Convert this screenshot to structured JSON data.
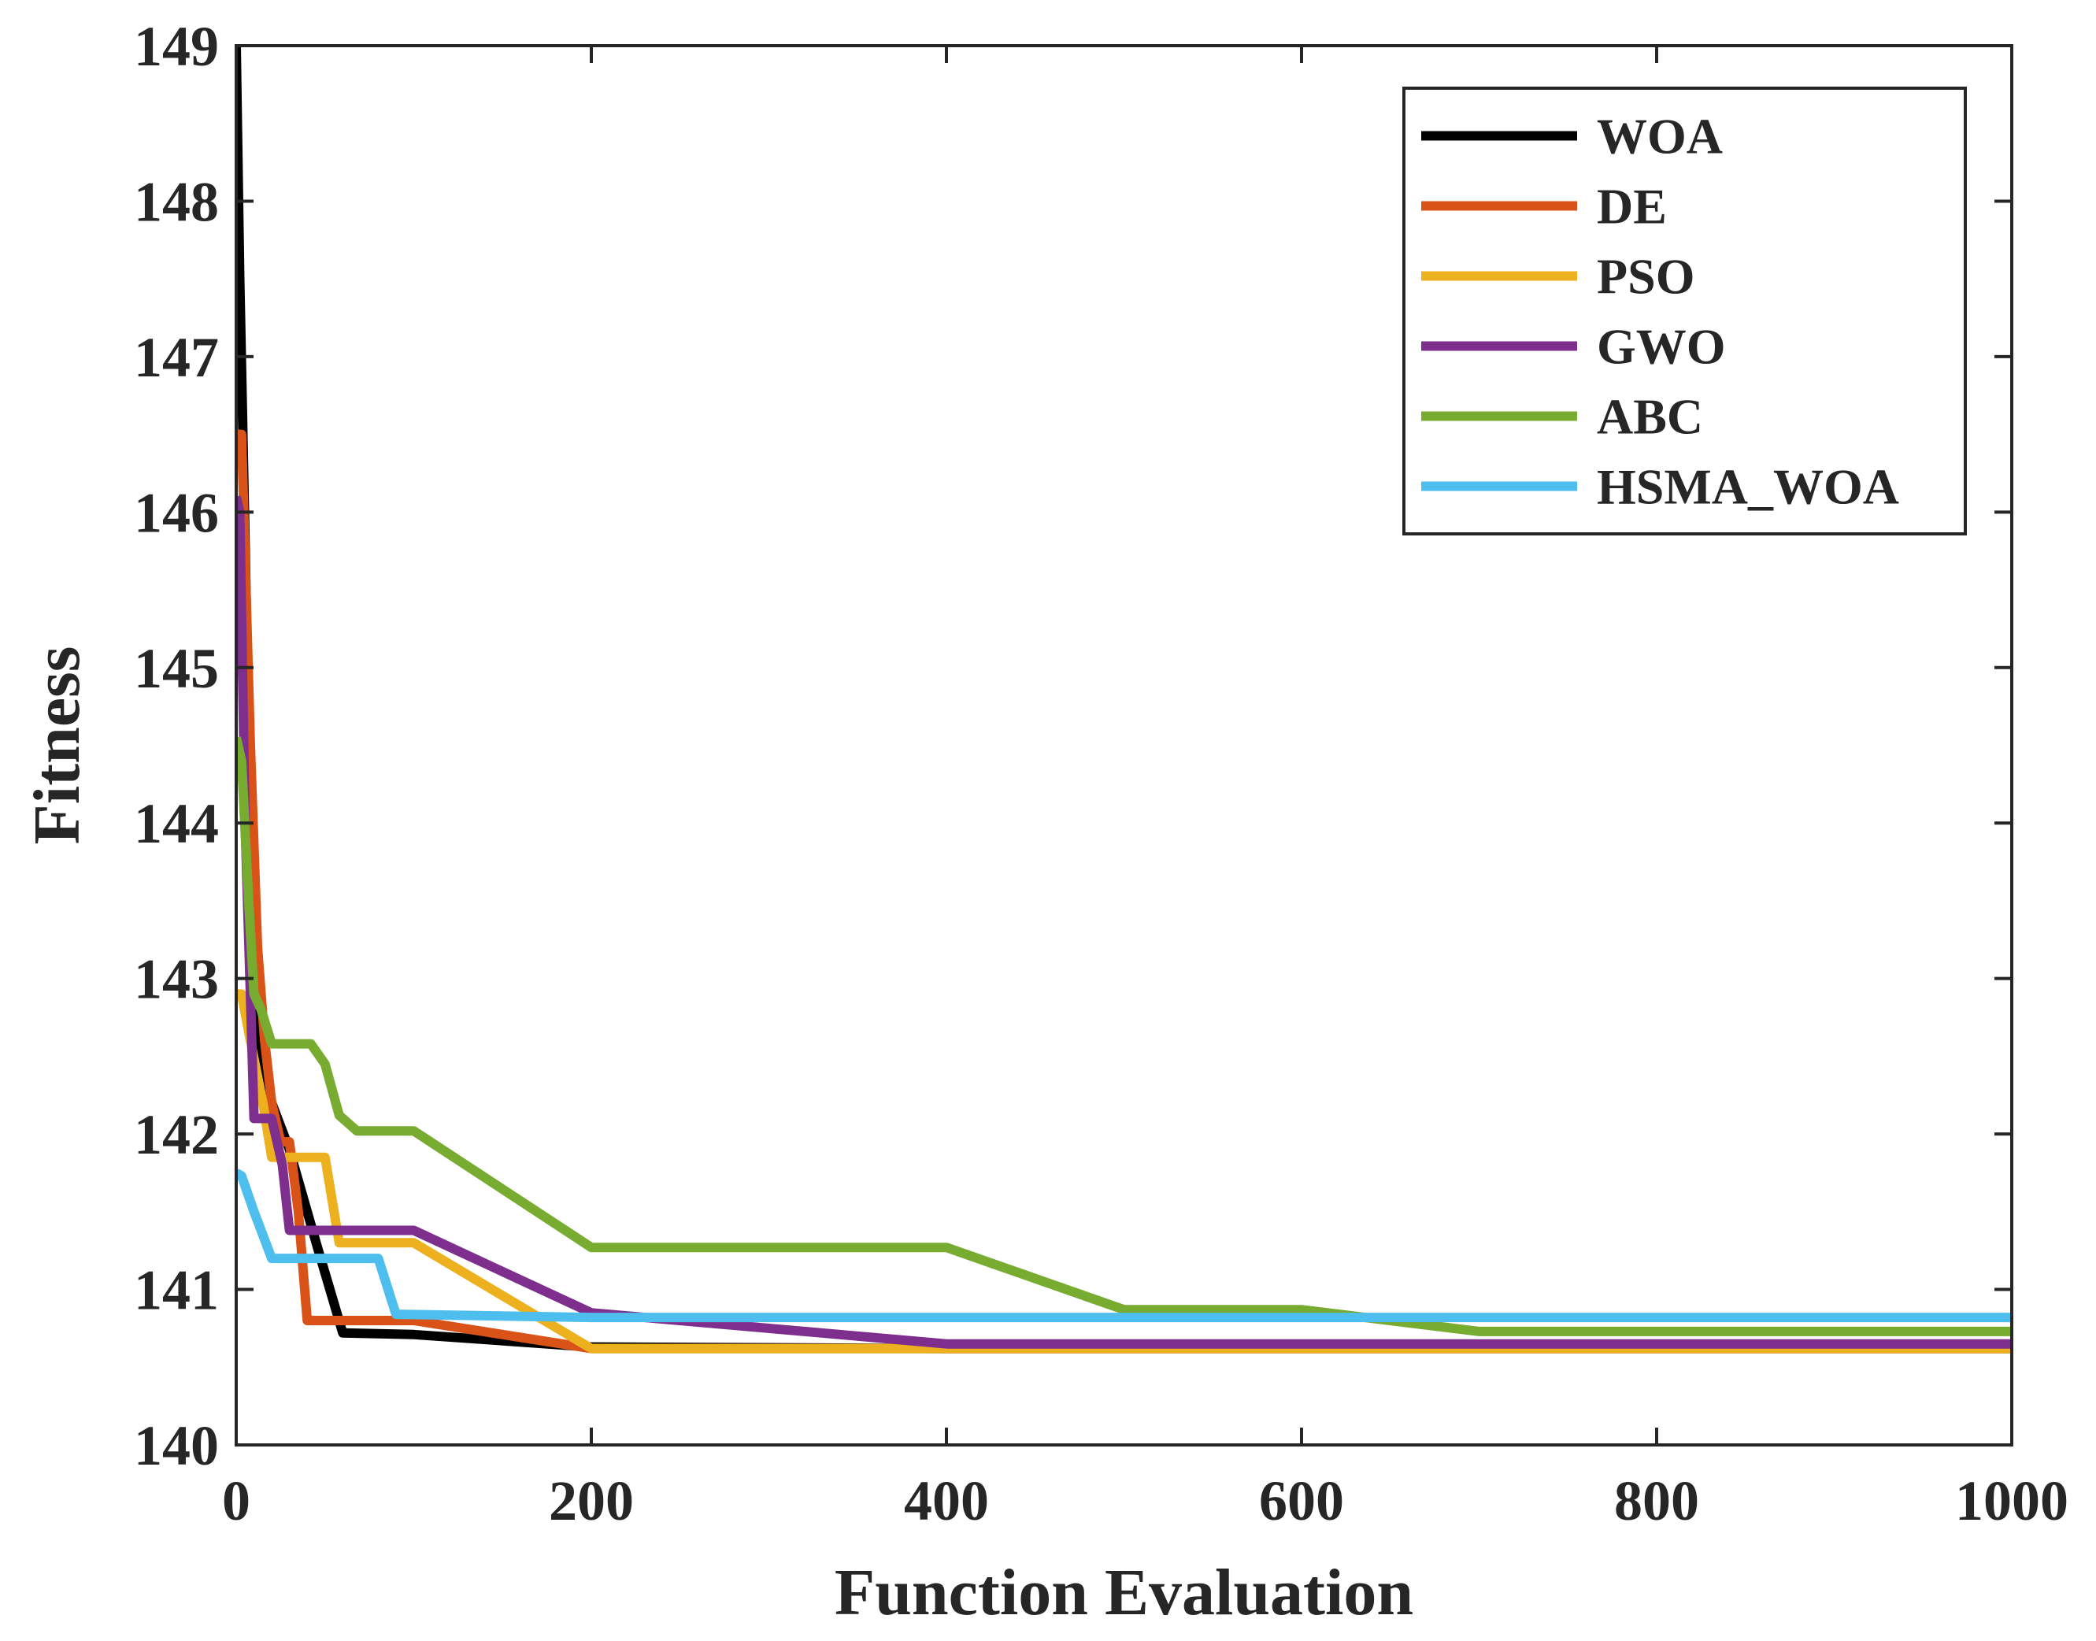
{
  "chart_data": {
    "type": "line",
    "title": "",
    "xlabel": "Function Evaluation",
    "ylabel": "Fitness",
    "xlim": [
      0,
      1000
    ],
    "ylim": [
      140,
      149
    ],
    "xticks": [
      0,
      200,
      400,
      600,
      800,
      1000
    ],
    "yticks": [
      140,
      141,
      142,
      143,
      144,
      145,
      146,
      147,
      148,
      149
    ],
    "grid": false,
    "legend_position": "top-right",
    "series": [
      {
        "name": "WOA",
        "color": "#000000",
        "points": [
          [
            0,
            149.0
          ],
          [
            2,
            147.5
          ],
          [
            5,
            145.8
          ],
          [
            8,
            144.0
          ],
          [
            10,
            143.2
          ],
          [
            13,
            142.6
          ],
          [
            20,
            142.2
          ],
          [
            30,
            141.9
          ],
          [
            45,
            141.3
          ],
          [
            60,
            140.72
          ],
          [
            100,
            140.71
          ],
          [
            200,
            140.63
          ],
          [
            400,
            140.62
          ],
          [
            1000,
            140.62
          ]
        ]
      },
      {
        "name": "DE",
        "color": "#D95319",
        "points": [
          [
            0,
            146.5
          ],
          [
            3,
            146.5
          ],
          [
            8,
            144.5
          ],
          [
            12,
            143.2
          ],
          [
            16,
            142.6
          ],
          [
            20,
            142.2
          ],
          [
            25,
            141.95
          ],
          [
            30,
            141.95
          ],
          [
            35,
            141.5
          ],
          [
            40,
            140.8
          ],
          [
            100,
            140.8
          ],
          [
            200,
            140.62
          ],
          [
            400,
            140.62
          ],
          [
            1000,
            140.62
          ]
        ]
      },
      {
        "name": "PSO",
        "color": "#EDB120",
        "points": [
          [
            0,
            142.9
          ],
          [
            3,
            142.9
          ],
          [
            8,
            142.6
          ],
          [
            15,
            142.2
          ],
          [
            20,
            141.85
          ],
          [
            50,
            141.85
          ],
          [
            58,
            141.3
          ],
          [
            100,
            141.3
          ],
          [
            200,
            140.62
          ],
          [
            400,
            140.62
          ],
          [
            1000,
            140.62
          ]
        ]
      },
      {
        "name": "GWO",
        "color": "#7E2F8E",
        "points": [
          [
            0,
            146.1
          ],
          [
            2,
            146.0
          ],
          [
            5,
            144.0
          ],
          [
            8,
            142.9
          ],
          [
            10,
            142.1
          ],
          [
            20,
            142.1
          ],
          [
            26,
            141.8
          ],
          [
            30,
            141.38
          ],
          [
            100,
            141.38
          ],
          [
            200,
            140.85
          ],
          [
            400,
            140.65
          ],
          [
            1000,
            140.65
          ]
        ]
      },
      {
        "name": "ABC",
        "color": "#77AC30",
        "points": [
          [
            0,
            144.55
          ],
          [
            3,
            144.4
          ],
          [
            7,
            143.5
          ],
          [
            10,
            142.9
          ],
          [
            14,
            142.8
          ],
          [
            20,
            142.58
          ],
          [
            42,
            142.58
          ],
          [
            50,
            142.45
          ],
          [
            58,
            142.12
          ],
          [
            68,
            142.02
          ],
          [
            100,
            142.02
          ],
          [
            200,
            141.27
          ],
          [
            400,
            141.27
          ],
          [
            500,
            140.87
          ],
          [
            600,
            140.87
          ],
          [
            700,
            140.73
          ],
          [
            1000,
            140.73
          ]
        ]
      },
      {
        "name": "HSMA_WOA",
        "color": "#4DBEEE",
        "points": [
          [
            0,
            141.75
          ],
          [
            3,
            141.73
          ],
          [
            10,
            141.5
          ],
          [
            20,
            141.2
          ],
          [
            80,
            141.2
          ],
          [
            90,
            140.84
          ],
          [
            200,
            140.82
          ],
          [
            1000,
            140.82
          ]
        ]
      }
    ]
  }
}
